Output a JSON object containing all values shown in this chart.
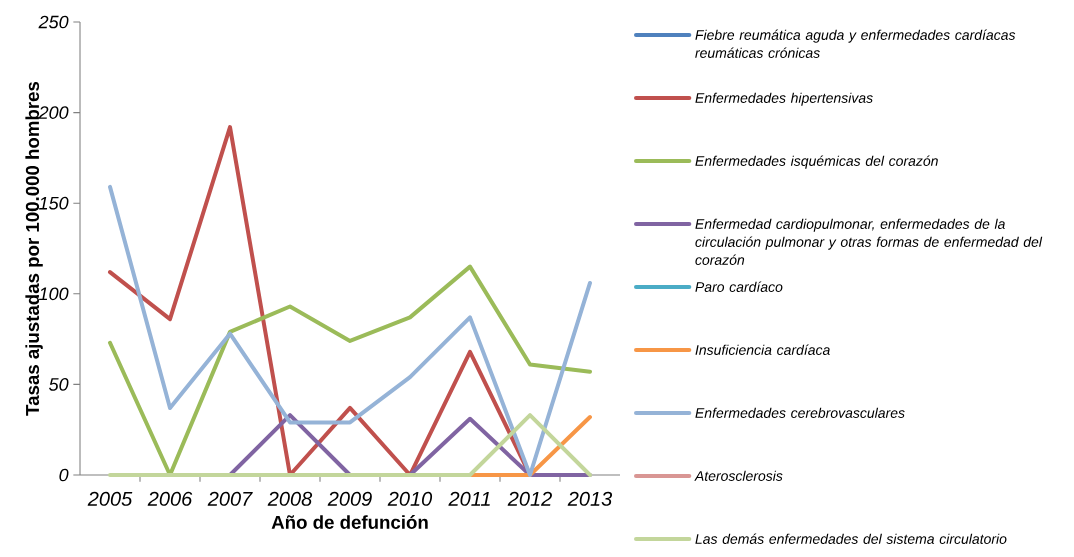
{
  "chart_data": {
    "type": "line",
    "xlabel": "Año de defunción",
    "ylabel": "Tasas ajustadas por 100.000 hombres",
    "categories": [
      "2005",
      "2006",
      "2007",
      "2008",
      "2009",
      "2010",
      "2011",
      "2012",
      "2013"
    ],
    "ylim": [
      0,
      250
    ],
    "yticks": [
      0,
      50,
      100,
      150,
      200,
      250
    ],
    "grid": false,
    "legend": "right",
    "marker": "none",
    "line_style": "solid",
    "series": [
      {
        "name": "Fiebre reumática aguda y enfermedades cardíacas reumáticas crónicas",
        "color": "#4f81bd",
        "values": [
          null,
          null,
          null,
          null,
          null,
          null,
          null,
          null,
          null
        ]
      },
      {
        "name": "Enfermedades hipertensivas",
        "color": "#c0504d",
        "values": [
          112,
          86,
          192,
          0,
          37,
          0,
          68,
          0,
          null
        ]
      },
      {
        "name": "Enfermedades isquémicas del corazón",
        "color": "#9bbb59",
        "values": [
          73,
          0,
          79,
          93,
          74,
          87,
          115,
          61,
          57
        ]
      },
      {
        "name": "Enfermedad cardiopulmonar, enfermedades de la circulación pulmonar y otras formas de enfermedad del corazón",
        "color": "#8064a2",
        "values": [
          null,
          null,
          0,
          33,
          0,
          0,
          31,
          0,
          0
        ]
      },
      {
        "name": "Paro cardíaco",
        "color": "#4bacc6",
        "values": [
          null,
          null,
          null,
          null,
          null,
          null,
          null,
          null,
          null
        ]
      },
      {
        "name": "Insuficiencia cardíaca",
        "color": "#f79646",
        "values": [
          null,
          null,
          null,
          null,
          null,
          null,
          0,
          0,
          32
        ]
      },
      {
        "name": "Enfermedades cerebrovasculares",
        "color": "#95b3d7",
        "values": [
          159,
          37,
          78,
          29,
          29,
          54,
          87,
          0,
          106
        ]
      },
      {
        "name": "Aterosclerosis",
        "color": "#d99694",
        "values": [
          null,
          null,
          null,
          null,
          null,
          null,
          null,
          null,
          null
        ]
      },
      {
        "name": "Las demás enfermedades del sistema circulatorio",
        "color": "#c3d69b",
        "values": [
          0,
          0,
          0,
          0,
          0,
          0,
          0,
          33,
          0
        ]
      }
    ]
  }
}
